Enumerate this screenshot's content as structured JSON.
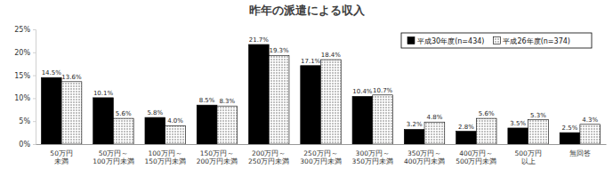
{
  "chart_data": {
    "type": "bar",
    "title": "昨年の派遣による収入",
    "categories": [
      "50万円\n未満",
      "50万円～\n100万円未満",
      "100万円～\n150万円未満",
      "150万円～\n200万円未満",
      "200万円～\n250万円未満",
      "250万円～\n300万円未満",
      "300万円～\n350万円未満",
      "350万円～\n400万円未満",
      "400万円～\n500万円未満",
      "500万円\n以上",
      "無回答"
    ],
    "series": [
      {
        "name": "平成30年度(n=434)",
        "color": "#000000",
        "values": [
          14.5,
          10.1,
          5.8,
          8.5,
          21.7,
          17.1,
          10.4,
          3.2,
          2.8,
          3.5,
          2.5
        ],
        "value_labels": [
          "14.5%",
          "10.1%",
          "5.8%",
          "8.5%",
          "21.7%",
          "17.1%",
          "10.4%",
          "3.2%",
          "2.8%",
          "3.5%",
          "2.5%"
        ]
      },
      {
        "name": "平成26年度(n=374)",
        "color": "#555555",
        "values": [
          13.6,
          5.6,
          4.0,
          8.3,
          19.3,
          18.4,
          10.7,
          4.8,
          5.6,
          5.3,
          4.3
        ],
        "value_labels": [
          "13.6%",
          "5.6%",
          "4.0%",
          "8.3%",
          "19.3%",
          "18.4%",
          "10.7%",
          "4.8%",
          "5.6%",
          "5.3%",
          "4.3%"
        ]
      }
    ],
    "ylim": [
      0,
      25
    ],
    "yticks": [
      {
        "value": 0,
        "label": "0%"
      },
      {
        "value": 5,
        "label": "5%"
      },
      {
        "value": 10,
        "label": "10%"
      },
      {
        "value": 15,
        "label": "15%"
      },
      {
        "value": 20,
        "label": "20%"
      },
      {
        "value": 25,
        "label": "25%"
      }
    ],
    "grid": false,
    "legend": "upper right",
    "data_labels": true
  }
}
